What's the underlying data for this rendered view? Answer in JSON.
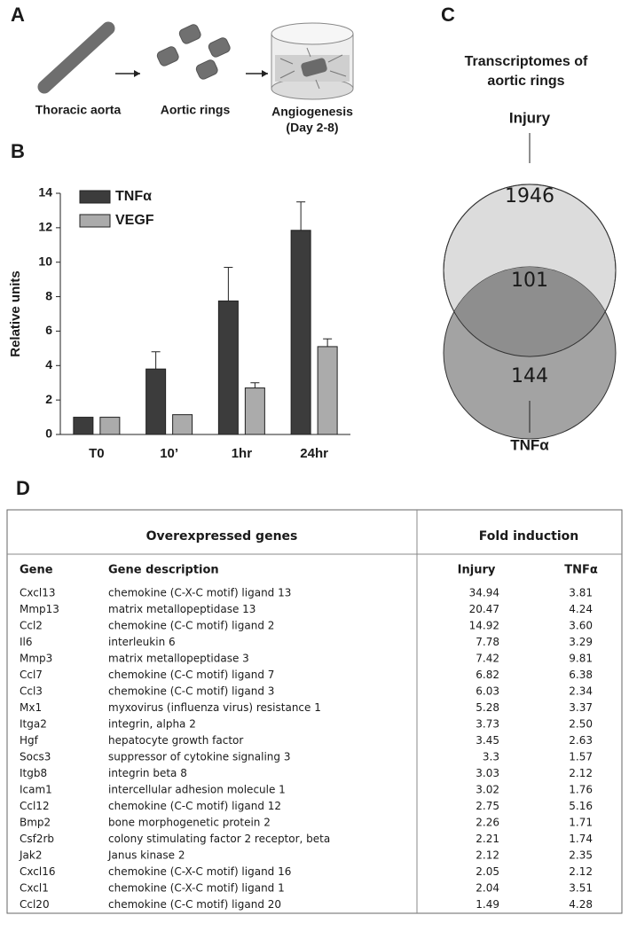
{
  "panel_labels": [
    "A",
    "B",
    "C",
    "D"
  ],
  "diagram": {
    "steps": [
      {
        "lines": [
          "Thoracic aorta"
        ]
      },
      {
        "lines": [
          "Aortic rings"
        ]
      },
      {
        "lines": [
          "Angiogenesis",
          "(Day 2-8)"
        ]
      }
    ]
  },
  "chart_data": {
    "type": "bar",
    "y_label": "Relative units",
    "categories": [
      "T0",
      "10’",
      "1hr",
      "24hr"
    ],
    "series": [
      {
        "name": "TNFα",
        "color": "#3c3c3c",
        "values": [
          1,
          3.8,
          7.75,
          11.85
        ],
        "errors": [
          0,
          1.0,
          1.95,
          1.65
        ]
      },
      {
        "name": "VEGF",
        "color": "#ababab",
        "values": [
          1,
          1.15,
          2.7,
          5.1
        ],
        "errors": [
          0,
          0,
          0.3,
          0.45
        ]
      }
    ],
    "ylim": [
      0,
      14
    ],
    "yticks": [
      0,
      2,
      4,
      6,
      8,
      10,
      12,
      14
    ],
    "legend": "upper-left",
    "grid": false
  },
  "venn": {
    "title_lines": [
      "Transcriptomes of",
      "aortic rings"
    ],
    "sets": [
      {
        "label": "Injury",
        "only": 1946,
        "color": "#dcdcdc"
      },
      {
        "label": "TNFα",
        "only": 144,
        "color": "#a3a3a3"
      }
    ],
    "overlap": 101,
    "overlap_color": "#8e8e8e"
  },
  "table": {
    "group_headers": [
      "Overexpressed genes",
      "Fold induction"
    ],
    "columns": [
      "Gene",
      "Gene description",
      "Injury",
      "TNFα"
    ],
    "rows": [
      [
        "Cxcl13",
        "chemokine (C-X-C motif) ligand 13",
        "34.94",
        "3.81"
      ],
      [
        "Mmp13",
        "matrix metallopeptidase 13",
        "20.47",
        "4.24"
      ],
      [
        "Ccl2",
        "chemokine (C-C motif) ligand 2",
        "14.92",
        "3.60"
      ],
      [
        "Il6",
        "interleukin 6",
        "7.78",
        "3.29"
      ],
      [
        "Mmp3",
        "matrix metallopeptidase 3",
        "7.42",
        "9.81"
      ],
      [
        "Ccl7",
        "chemokine (C-C motif) ligand 7",
        "6.82",
        "6.38"
      ],
      [
        "Ccl3",
        "chemokine (C-C motif) ligand 3",
        "6.03",
        "2.34"
      ],
      [
        "Mx1",
        "myxovirus (influenza virus) resistance 1",
        "5.28",
        "3.37"
      ],
      [
        "Itga2",
        "integrin, alpha 2",
        "3.73",
        "2.50"
      ],
      [
        "Hgf",
        "hepatocyte growth factor",
        "3.45",
        "2.63"
      ],
      [
        "Socs3",
        "suppressor of cytokine signaling 3",
        "3.3",
        "1.57"
      ],
      [
        "Itgb8",
        "integrin beta 8",
        "3.03",
        "2.12"
      ],
      [
        "Icam1",
        "intercellular adhesion molecule 1",
        "3.02",
        "1.76"
      ],
      [
        "Ccl12",
        "chemokine (C-C motif) ligand 12",
        "2.75",
        "5.16"
      ],
      [
        "Bmp2",
        "bone morphogenetic protein 2",
        "2.26",
        "1.71"
      ],
      [
        "Csf2rb",
        "colony stimulating factor 2 receptor, beta",
        "2.21",
        "1.74"
      ],
      [
        "Jak2",
        "Janus kinase 2",
        "2.12",
        "2.35"
      ],
      [
        "Cxcl16",
        "chemokine (C-X-C motif) ligand 16",
        "2.05",
        "2.12"
      ],
      [
        "Cxcl1",
        "chemokine (C-X-C motif) ligand 1",
        "2.04",
        "3.51"
      ],
      [
        "Ccl20",
        "chemokine (C-C motif) ligand 20",
        "1.49",
        "4.28"
      ]
    ]
  }
}
